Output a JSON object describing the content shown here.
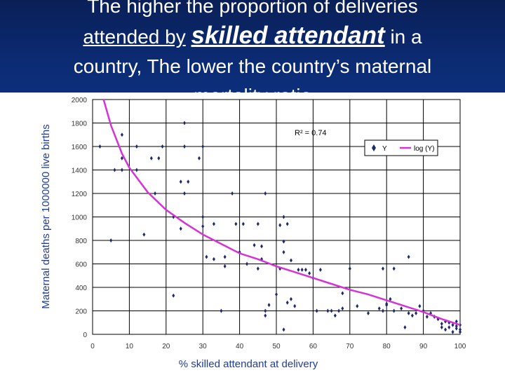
{
  "slide": {
    "title": {
      "line1": "The higher the proportion of deliveries",
      "line2_pre": "attended by",
      "line2_emph": "skilled attendant",
      "line2_post": "in a",
      "line3": "country, The lower the country’s maternal",
      "line4": "mortality ratio"
    }
  },
  "colors": {
    "title_bg": "#0b2a70",
    "title_text": "#ffffff",
    "axis_label": "#1f3d99",
    "points": "#1f2a6b",
    "trend": "#d633d6",
    "grid": "#000000"
  },
  "chart_data": {
    "type": "scatter",
    "xlabel": "% skilled attendant at delivery",
    "ylabel": "Maternal deaths per 1000000 live births",
    "xlim": [
      0,
      100
    ],
    "ylim": [
      0,
      2000
    ],
    "xticks": [
      0,
      10,
      20,
      30,
      40,
      50,
      60,
      70,
      80,
      90,
      100
    ],
    "yticks": [
      0,
      200,
      400,
      600,
      800,
      1000,
      1200,
      1400,
      1600,
      1800,
      2000
    ],
    "grid": true,
    "annotation": "R² = 0.74",
    "legend": {
      "placement": "top-right",
      "entries": [
        {
          "name": "Y",
          "kind": "marker"
        },
        {
          "name": "log (Y)",
          "kind": "line"
        }
      ]
    },
    "trendline": {
      "type": "logarithmic",
      "points": [
        [
          3,
          2000
        ],
        [
          5,
          1780
        ],
        [
          8,
          1540
        ],
        [
          10,
          1420
        ],
        [
          15,
          1210
        ],
        [
          20,
          1060
        ],
        [
          25,
          950
        ],
        [
          30,
          850
        ],
        [
          35,
          770
        ],
        [
          40,
          690
        ],
        [
          45,
          640
        ],
        [
          50,
          580
        ],
        [
          55,
          530
        ],
        [
          60,
          480
        ],
        [
          65,
          430
        ],
        [
          70,
          380
        ],
        [
          75,
          340
        ],
        [
          80,
          290
        ],
        [
          85,
          240
        ],
        [
          90,
          190
        ],
        [
          95,
          130
        ],
        [
          100,
          80
        ]
      ]
    },
    "points": [
      [
        2,
        1600
      ],
      [
        5,
        800
      ],
      [
        6,
        1400
      ],
      [
        8,
        1700
      ],
      [
        8,
        1500
      ],
      [
        8,
        1400
      ],
      [
        12,
        1400
      ],
      [
        12,
        1600
      ],
      [
        14,
        850
      ],
      [
        16,
        1500
      ],
      [
        18,
        1500
      ],
      [
        17,
        1200
      ],
      [
        19,
        1600
      ],
      [
        22,
        330
      ],
      [
        22,
        1000
      ],
      [
        24,
        900
      ],
      [
        24,
        1300
      ],
      [
        25,
        1800
      ],
      [
        25,
        1200
      ],
      [
        25,
        1600
      ],
      [
        26,
        1300
      ],
      [
        29,
        1500
      ],
      [
        30,
        1600
      ],
      [
        30,
        1000
      ],
      [
        30,
        920
      ],
      [
        31,
        660
      ],
      [
        33,
        940
      ],
      [
        33,
        640
      ],
      [
        35,
        200
      ],
      [
        36,
        580
      ],
      [
        36,
        660
      ],
      [
        38,
        1200
      ],
      [
        39,
        940
      ],
      [
        40,
        700
      ],
      [
        41,
        940
      ],
      [
        42,
        600
      ],
      [
        45,
        940
      ],
      [
        44,
        760
      ],
      [
        45,
        560
      ],
      [
        46,
        750
      ],
      [
        46,
        640
      ],
      [
        47,
        200
      ],
      [
        47,
        1200
      ],
      [
        47,
        160
      ],
      [
        48,
        250
      ],
      [
        50,
        340
      ],
      [
        51,
        930
      ],
      [
        51,
        560
      ],
      [
        52,
        1000
      ],
      [
        52,
        790
      ],
      [
        52,
        40
      ],
      [
        52,
        700
      ],
      [
        53,
        270
      ],
      [
        53,
        940
      ],
      [
        54,
        630
      ],
      [
        54,
        300
      ],
      [
        55,
        240
      ],
      [
        56,
        550
      ],
      [
        57,
        550
      ],
      [
        58,
        550
      ],
      [
        59,
        520
      ],
      [
        60,
        480
      ],
      [
        61,
        200
      ],
      [
        62,
        550
      ],
      [
        64,
        200
      ],
      [
        65,
        200
      ],
      [
        66,
        160
      ],
      [
        67,
        200
      ],
      [
        68,
        220
      ],
      [
        68,
        350
      ],
      [
        70,
        560
      ],
      [
        72,
        240
      ],
      [
        75,
        180
      ],
      [
        78,
        220
      ],
      [
        79,
        200
      ],
      [
        79,
        560
      ],
      [
        80,
        260
      ],
      [
        80,
        250
      ],
      [
        81,
        300
      ],
      [
        82,
        200
      ],
      [
        82,
        560
      ],
      [
        84,
        220
      ],
      [
        85,
        60
      ],
      [
        86,
        180
      ],
      [
        86,
        660
      ],
      [
        87,
        160
      ],
      [
        88,
        180
      ],
      [
        89,
        240
      ],
      [
        90,
        200
      ],
      [
        91,
        150
      ],
      [
        92,
        180
      ],
      [
        93,
        150
      ],
      [
        94,
        130
      ],
      [
        95,
        60
      ],
      [
        95,
        90
      ],
      [
        96,
        40
      ],
      [
        96,
        110
      ],
      [
        97,
        60
      ],
      [
        97,
        100
      ],
      [
        98,
        80
      ],
      [
        98,
        20
      ],
      [
        99,
        70
      ],
      [
        99,
        110
      ],
      [
        99,
        50
      ],
      [
        100,
        40
      ],
      [
        100,
        80
      ],
      [
        100,
        20
      ]
    ]
  }
}
